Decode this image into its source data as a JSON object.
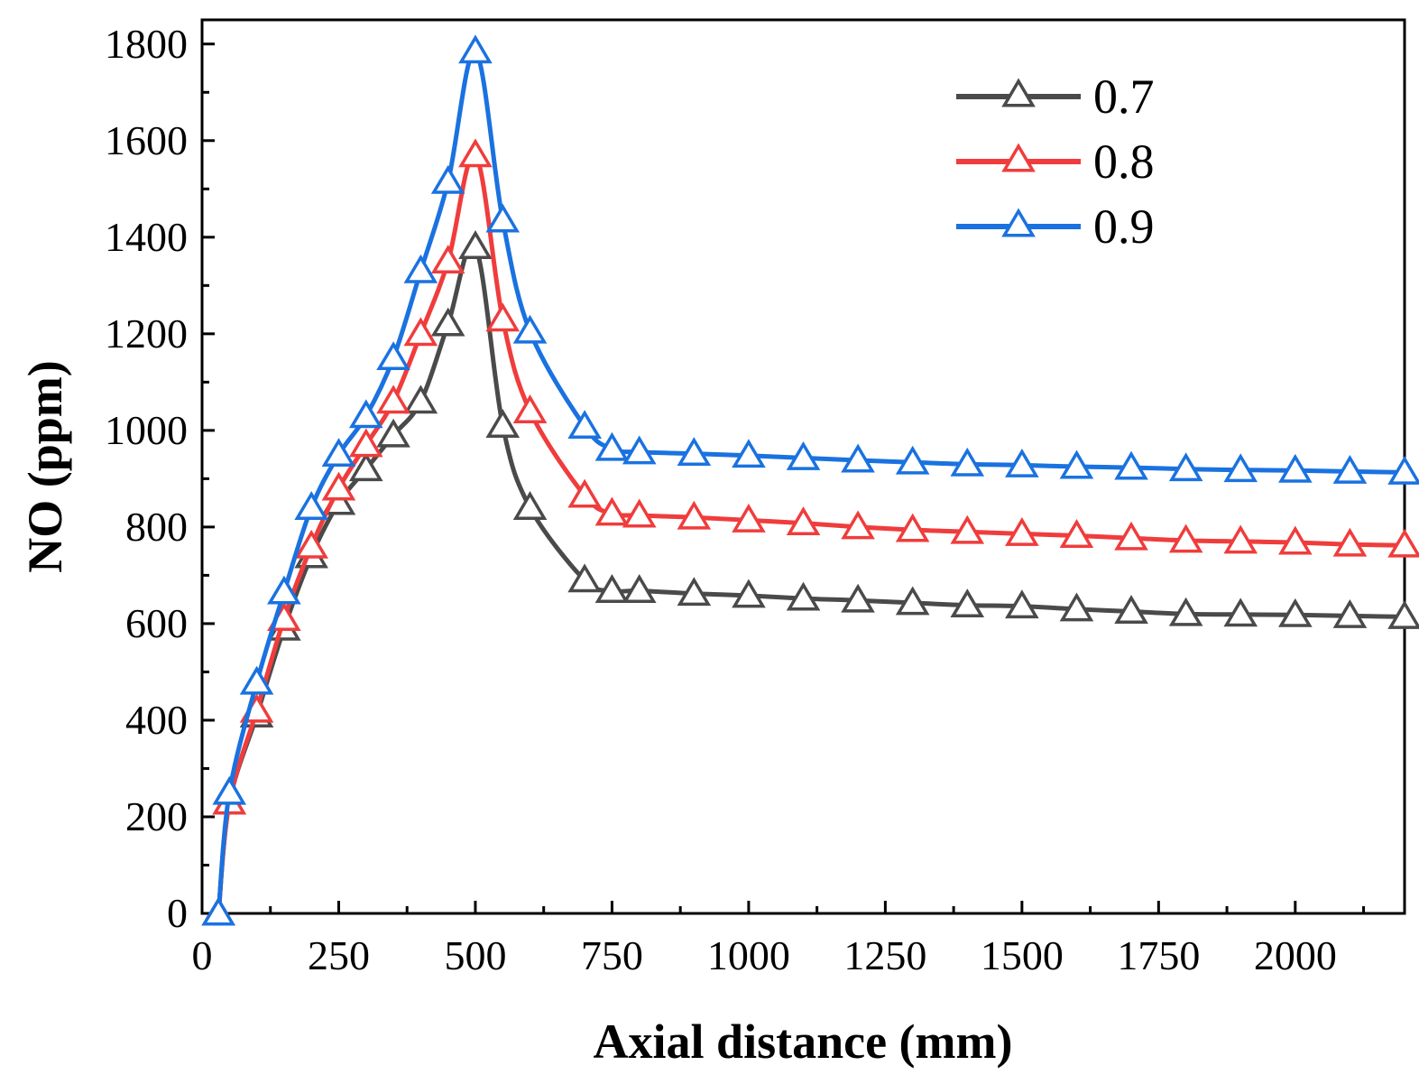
{
  "chart_data": {
    "type": "line",
    "title": "",
    "xlabel": "Axial distance (mm)",
    "ylabel": "NO (ppm)",
    "xlim": [
      0,
      2200
    ],
    "ylim": [
      0,
      1850
    ],
    "xticks": [
      0,
      250,
      500,
      750,
      1000,
      1250,
      1500,
      1750,
      2000
    ],
    "yticks": [
      0,
      200,
      400,
      600,
      800,
      1000,
      1200,
      1400,
      1600,
      1800
    ],
    "xtick_labels": [
      "0",
      "250",
      "500",
      "750",
      "1000",
      "1250",
      "1500",
      "1750",
      "2000"
    ],
    "ytick_labels": [
      "0",
      "200",
      "400",
      "600",
      "800",
      "1000",
      "1200",
      "1400",
      "1600",
      "1800"
    ],
    "legend_position": "top-right",
    "marker": "open-triangle",
    "x": [
      30,
      50,
      100,
      150,
      200,
      250,
      300,
      350,
      400,
      450,
      500,
      550,
      600,
      700,
      750,
      800,
      900,
      1000,
      1100,
      1200,
      1300,
      1400,
      1500,
      1600,
      1700,
      1800,
      1900,
      2000,
      2100,
      2200
    ],
    "series": [
      {
        "name": "0.7",
        "color": "#4a4a4a",
        "values": [
          0,
          230,
          410,
          590,
          740,
          850,
          920,
          990,
          1060,
          1220,
          1380,
          1010,
          840,
          690,
          668,
          668,
          662,
          658,
          652,
          648,
          643,
          638,
          636,
          630,
          625,
          620,
          619,
          618,
          616,
          614
        ]
      },
      {
        "name": "0.8",
        "color": "#f03c3c",
        "values": [
          0,
          230,
          420,
          610,
          760,
          880,
          970,
          1060,
          1200,
          1350,
          1570,
          1230,
          1040,
          865,
          828,
          824,
          820,
          814,
          808,
          800,
          794,
          790,
          786,
          782,
          777,
          772,
          770,
          768,
          764,
          762
        ]
      },
      {
        "name": "0.9",
        "color": "#1a72e0",
        "values": [
          0,
          250,
          478,
          665,
          840,
          950,
          1030,
          1150,
          1330,
          1515,
          1785,
          1435,
          1205,
          1008,
          962,
          955,
          952,
          948,
          943,
          938,
          934,
          930,
          928,
          925,
          923,
          920,
          918,
          917,
          915,
          913
        ]
      }
    ]
  }
}
